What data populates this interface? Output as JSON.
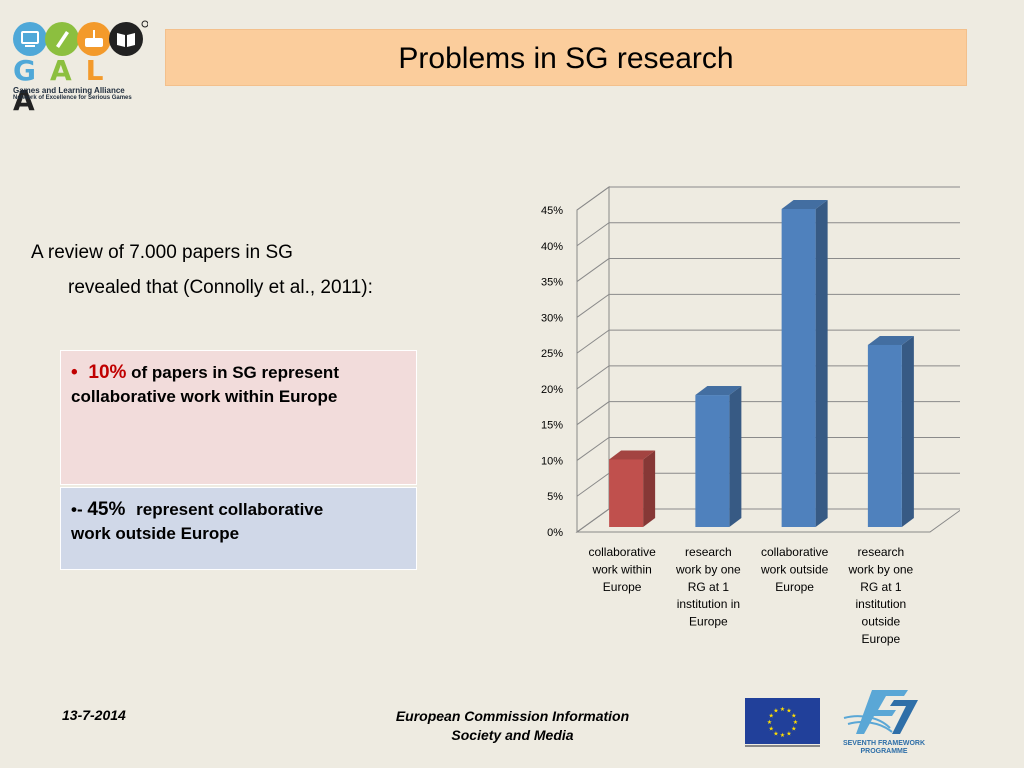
{
  "logo": {
    "letters": [
      "G",
      "A",
      "L",
      "A"
    ],
    "tagline": "Games and Learning Alliance",
    "subline": "Network of Excellence for Serious Games"
  },
  "slide": {
    "title": "Problems in SG research",
    "intro_line1": "A review of 7.000 papers in SG",
    "intro_line2": "revealed that (Connolly et al., 2011):"
  },
  "box1": {
    "bullet": "•",
    "highlight": "10%",
    "text_a": " of papers in SG represent",
    "text_b": "collaborative work within Europe"
  },
  "box2": {
    "bullet": "•-",
    "highlight": "45%",
    "text_a": "represent  collaborative",
    "text_b": "work outside Europe"
  },
  "footer": {
    "date": "13-7-2014",
    "org_line1": "European Commission Information",
    "org_line2": "Society and Media"
  },
  "fp7": {
    "label1": "SEVENTH FRAMEWORK",
    "label2": "PROGRAMME"
  },
  "colors": {
    "title_bg": "#fbcd9c",
    "bar_blue": "#4f81bd",
    "bar_red": "#c0504d",
    "box1_bg": "#f2dcdb",
    "box2_bg": "#d0d8e8"
  },
  "chart_data": {
    "type": "bar",
    "categories": [
      [
        "collaborative",
        "work within",
        "Europe"
      ],
      [
        "research",
        "work  by one",
        "RG  at 1",
        "institution in",
        "Europe"
      ],
      [
        "collaborative",
        "work outside",
        "Europe"
      ],
      [
        "research",
        "work  by one",
        "RG at 1",
        "institution",
        "outside",
        "Europe"
      ]
    ],
    "values": [
      10,
      19,
      45,
      26
    ],
    "bar_colors": [
      "#c0504d",
      "#4f81bd",
      "#4f81bd",
      "#4f81bd"
    ],
    "ylim": [
      0,
      45
    ],
    "yticks": [
      0,
      5,
      10,
      15,
      20,
      25,
      30,
      35,
      40,
      45
    ],
    "ytick_labels": [
      "0%",
      "5%",
      "10%",
      "15%",
      "20%",
      "25%",
      "30%",
      "35%",
      "40%",
      "45%"
    ],
    "grid": true,
    "style": "3d"
  }
}
